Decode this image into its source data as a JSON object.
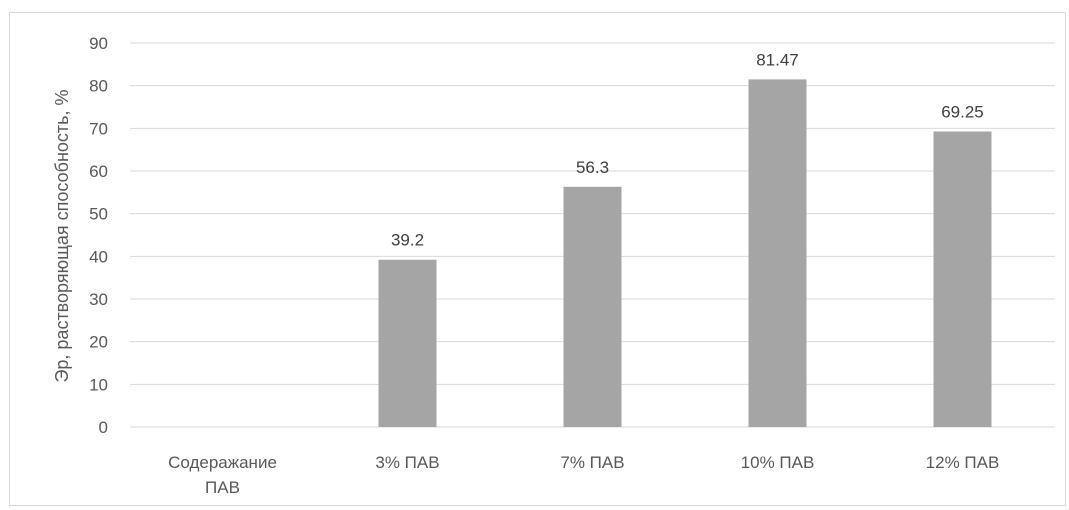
{
  "chart_data": {
    "type": "bar",
    "title": "",
    "xlabel": "",
    "ylabel": "Эр, растворяющая способность, %",
    "categories": [
      [
        "Содеражание",
        "ПАВ"
      ],
      [
        "3% ПАВ"
      ],
      [
        "7% ПАВ"
      ],
      [
        "10% ПАВ"
      ],
      [
        "12% ПАВ"
      ]
    ],
    "values": [
      null,
      39.2,
      56.3,
      81.47,
      69.25
    ],
    "data_labels": [
      "",
      "39.2",
      "56.3",
      "81.47",
      "69.25"
    ],
    "ylim": [
      0,
      90
    ],
    "yticks": [
      0,
      10,
      20,
      30,
      40,
      50,
      60,
      70,
      80,
      90
    ],
    "grid": true,
    "legend": "none",
    "bar_color": "#a5a5a5",
    "grid_color": "#d9d9d9"
  }
}
